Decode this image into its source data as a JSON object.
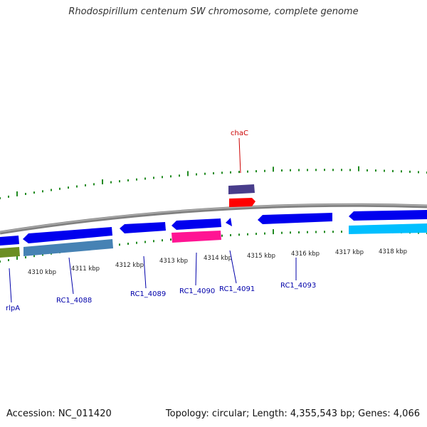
{
  "title": "Rhodospirillum centenum SW chromosome, complete genome",
  "footer": {
    "accession": "Accession: NC_011420",
    "summary": "Topology: circular; Length: 4,355,543 bp; Genes: 4,066"
  },
  "scale": {
    "tick_labels": [
      "4310 kbp",
      "4311 kbp",
      "4312 kbp",
      "4313 kbp",
      "4314 kbp",
      "4315 kbp",
      "4316 kbp",
      "4317 kbp",
      "4318 kbp"
    ],
    "tick_color": "#228B22",
    "backbone_color": "#808080"
  },
  "gene_labels": [
    {
      "text": "chaC",
      "color": "#cc0000"
    },
    {
      "text": "rlpA",
      "color": "#0000aa"
    },
    {
      "text": "RC1_4088",
      "color": "#0000aa"
    },
    {
      "text": "RC1_4089",
      "color": "#0000aa"
    },
    {
      "text": "RC1_4090",
      "color": "#0000aa"
    },
    {
      "text": "RC1_4091",
      "color": "#0000aa"
    },
    {
      "text": "RC1_4093",
      "color": "#0000aa"
    }
  ],
  "feature_colors": {
    "cds": "#0000ee",
    "trna_like": "#ff0000",
    "slate": "#483d8b",
    "olive": "#6b8e23",
    "steel": "#4682b4",
    "magenta": "#ff1493",
    "cyan": "#00bfff"
  }
}
